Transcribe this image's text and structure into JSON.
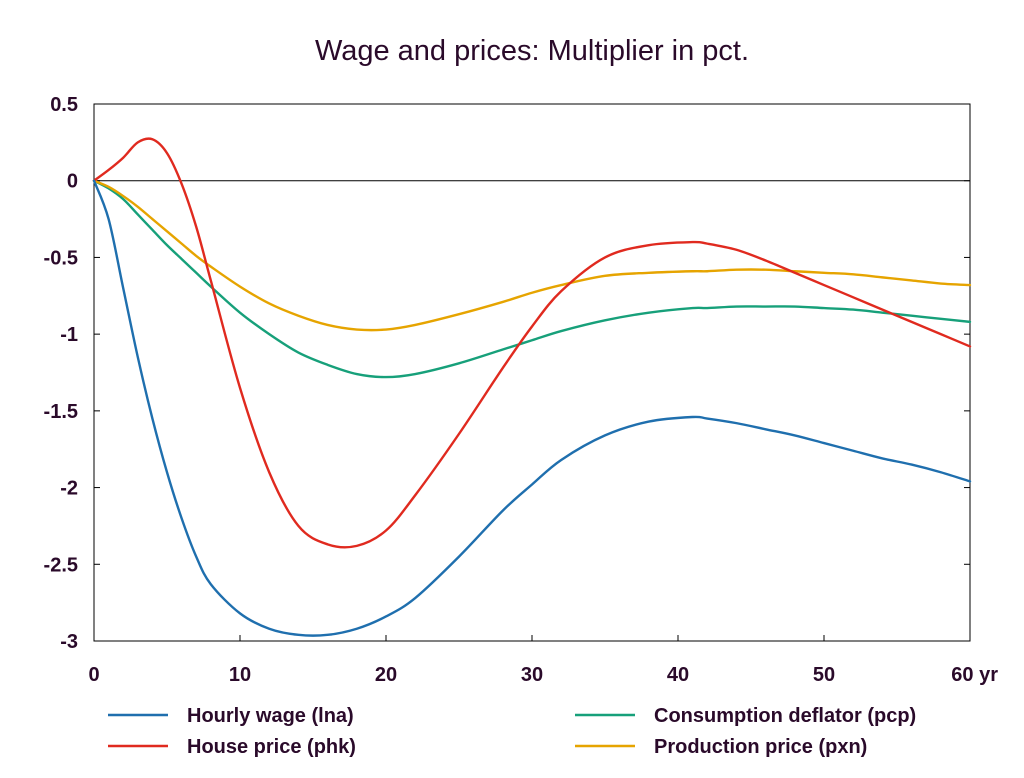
{
  "chart_data": {
    "type": "line",
    "title": "Wage and prices: Multiplier in pct.",
    "x_unit_label": "yr",
    "xlim": [
      0,
      60
    ],
    "ylim": [
      -3,
      0.5
    ],
    "x_ticks": [
      0,
      10,
      20,
      30,
      40,
      50,
      60
    ],
    "x_tick_labels": [
      "0",
      "10",
      "20",
      "30",
      "40",
      "50",
      "60 yr"
    ],
    "y_ticks": [
      0.5,
      0,
      -0.5,
      -1,
      -1.5,
      -2,
      -2.5,
      -3
    ],
    "y_tick_labels": [
      "0.5",
      "0",
      "-0.5",
      "-1",
      "-1.5",
      "-2",
      "-2.5",
      "-3"
    ],
    "zero_line": true,
    "grid": false,
    "legend_position": "bottom",
    "x": [
      0,
      1,
      2,
      3,
      4,
      5,
      6,
      7,
      8,
      10,
      12,
      14,
      16,
      18,
      20,
      22,
      25,
      28,
      30,
      32,
      35,
      38,
      41,
      42,
      44,
      46,
      48,
      50,
      52,
      54,
      56,
      58,
      60
    ],
    "series": [
      {
        "name": "Hourly wage (lna)",
        "color": "#1f6fae",
        "values": [
          0,
          -0.25,
          -0.7,
          -1.15,
          -1.55,
          -1.9,
          -2.2,
          -2.45,
          -2.63,
          -2.82,
          -2.92,
          -2.96,
          -2.96,
          -2.92,
          -2.84,
          -2.72,
          -2.45,
          -2.15,
          -1.98,
          -1.82,
          -1.66,
          -1.57,
          -1.54,
          -1.55,
          -1.58,
          -1.62,
          -1.66,
          -1.71,
          -1.76,
          -1.81,
          -1.85,
          -1.9,
          -1.96
        ]
      },
      {
        "name": "House price (phk)",
        "color": "#e02a1f",
        "values": [
          0,
          0.07,
          0.15,
          0.25,
          0.27,
          0.18,
          -0.02,
          -0.3,
          -0.65,
          -1.35,
          -1.9,
          -2.25,
          -2.37,
          -2.38,
          -2.28,
          -2.05,
          -1.65,
          -1.22,
          -0.95,
          -0.72,
          -0.5,
          -0.42,
          -0.4,
          -0.41,
          -0.45,
          -0.52,
          -0.6,
          -0.68,
          -0.76,
          -0.84,
          -0.92,
          -1.0,
          -1.08
        ]
      },
      {
        "name": "Consumption deflator (pcp)",
        "color": "#17a07a",
        "values": [
          0,
          -0.05,
          -0.12,
          -0.22,
          -0.32,
          -0.42,
          -0.51,
          -0.6,
          -0.69,
          -0.86,
          -1.0,
          -1.12,
          -1.2,
          -1.26,
          -1.28,
          -1.26,
          -1.19,
          -1.1,
          -1.04,
          -0.98,
          -0.91,
          -0.86,
          -0.83,
          -0.83,
          -0.82,
          -0.82,
          -0.82,
          -0.83,
          -0.84,
          -0.86,
          -0.88,
          -0.9,
          -0.92
        ]
      },
      {
        "name": "Production price (pxn)",
        "color": "#e6a400",
        "values": [
          0,
          -0.04,
          -0.1,
          -0.17,
          -0.25,
          -0.33,
          -0.41,
          -0.49,
          -0.56,
          -0.69,
          -0.8,
          -0.88,
          -0.94,
          -0.97,
          -0.97,
          -0.94,
          -0.87,
          -0.79,
          -0.73,
          -0.68,
          -0.62,
          -0.6,
          -0.59,
          -0.59,
          -0.58,
          -0.58,
          -0.59,
          -0.6,
          -0.61,
          -0.63,
          -0.65,
          -0.67,
          -0.68
        ]
      }
    ]
  }
}
